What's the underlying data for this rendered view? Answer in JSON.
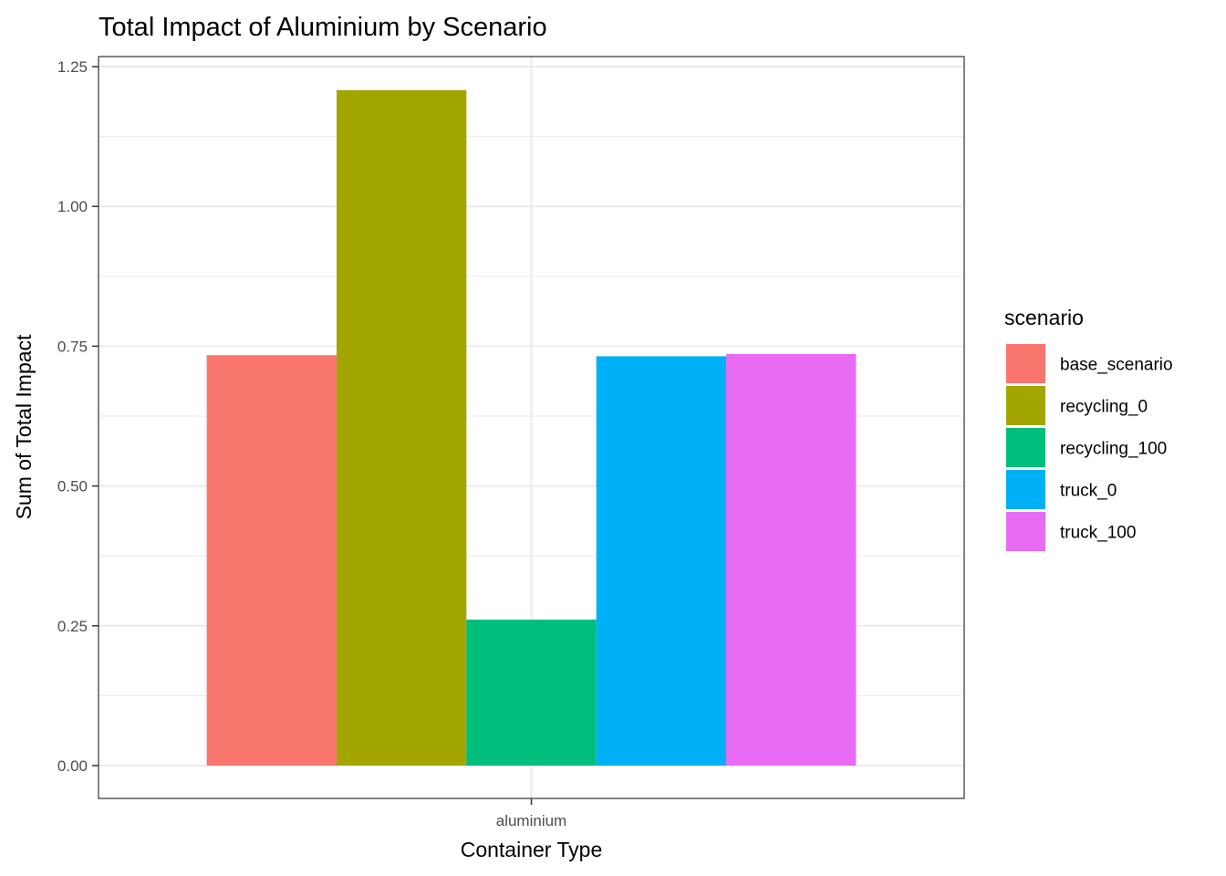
{
  "chart_data": {
    "type": "bar",
    "title": "Total Impact of Aluminium by Scenario",
    "xlabel": "Container Type",
    "ylabel": "Sum of Total Impact",
    "categories": [
      "aluminium"
    ],
    "ylim": [
      0,
      1.25
    ],
    "yticks": [
      "0.00",
      "0.25",
      "0.50",
      "0.75",
      "1.00",
      "1.25"
    ],
    "grid": true,
    "legend_title": "scenario",
    "legend_position": "right",
    "series": [
      {
        "name": "base_scenario",
        "values": [
          0.734
        ],
        "color": "#F8766D"
      },
      {
        "name": "recycling_0",
        "values": [
          1.208
        ],
        "color": "#A3A500"
      },
      {
        "name": "recycling_100",
        "values": [
          0.261
        ],
        "color": "#00BF7D"
      },
      {
        "name": "truck_0",
        "values": [
          0.732
        ],
        "color": "#00B0F6"
      },
      {
        "name": "truck_100",
        "values": [
          0.736
        ],
        "color": "#E76BF3"
      }
    ]
  }
}
